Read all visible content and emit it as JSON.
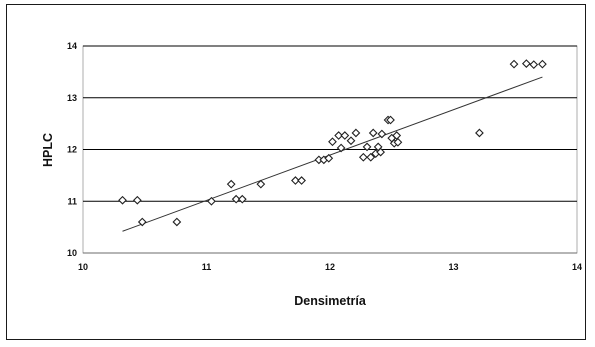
{
  "chart_data": {
    "type": "scatter",
    "title": "",
    "xlabel": "Densimetría",
    "ylabel": "HPLC",
    "xlim": [
      10,
      14
    ],
    "ylim": [
      10,
      14
    ],
    "x_ticks": [
      "10",
      "11",
      "12",
      "13",
      "14"
    ],
    "y_ticks": [
      "10",
      "11",
      "12",
      "13",
      "14"
    ],
    "grid": "horizontal",
    "legend": "none",
    "marker": "open-diamond",
    "colors": {
      "marker": "#222222",
      "trendline": "#333333",
      "grid": "#000000",
      "plot_border": "#9a9a9a"
    },
    "points": [
      {
        "x": 10.32,
        "y": 11.02
      },
      {
        "x": 10.44,
        "y": 11.02
      },
      {
        "x": 10.48,
        "y": 10.6
      },
      {
        "x": 10.76,
        "y": 10.6
      },
      {
        "x": 11.04,
        "y": 11.0
      },
      {
        "x": 11.2,
        "y": 11.33
      },
      {
        "x": 11.24,
        "y": 11.04
      },
      {
        "x": 11.29,
        "y": 11.04
      },
      {
        "x": 11.44,
        "y": 11.33
      },
      {
        "x": 11.72,
        "y": 11.4
      },
      {
        "x": 11.77,
        "y": 11.4
      },
      {
        "x": 11.91,
        "y": 11.8
      },
      {
        "x": 11.95,
        "y": 11.8
      },
      {
        "x": 11.99,
        "y": 11.83
      },
      {
        "x": 12.02,
        "y": 12.15
      },
      {
        "x": 12.07,
        "y": 12.27
      },
      {
        "x": 12.09,
        "y": 12.03
      },
      {
        "x": 12.12,
        "y": 12.27
      },
      {
        "x": 12.17,
        "y": 12.17
      },
      {
        "x": 12.21,
        "y": 12.32
      },
      {
        "x": 12.27,
        "y": 11.85
      },
      {
        "x": 12.3,
        "y": 12.05
      },
      {
        "x": 12.33,
        "y": 11.85
      },
      {
        "x": 12.35,
        "y": 12.32
      },
      {
        "x": 12.37,
        "y": 11.92
      },
      {
        "x": 12.39,
        "y": 12.05
      },
      {
        "x": 12.41,
        "y": 11.95
      },
      {
        "x": 12.42,
        "y": 12.3
      },
      {
        "x": 12.47,
        "y": 12.57
      },
      {
        "x": 12.49,
        "y": 12.57
      },
      {
        "x": 12.5,
        "y": 12.22
      },
      {
        "x": 12.52,
        "y": 12.12
      },
      {
        "x": 12.54,
        "y": 12.27
      },
      {
        "x": 12.55,
        "y": 12.14
      },
      {
        "x": 13.21,
        "y": 12.32
      },
      {
        "x": 13.49,
        "y": 13.65
      },
      {
        "x": 13.59,
        "y": 13.66
      },
      {
        "x": 13.65,
        "y": 13.64
      },
      {
        "x": 13.72,
        "y": 13.65
      }
    ],
    "trendline": {
      "type": "linear",
      "x": [
        10.32,
        13.72
      ],
      "y": [
        10.42,
        13.4
      ]
    }
  }
}
